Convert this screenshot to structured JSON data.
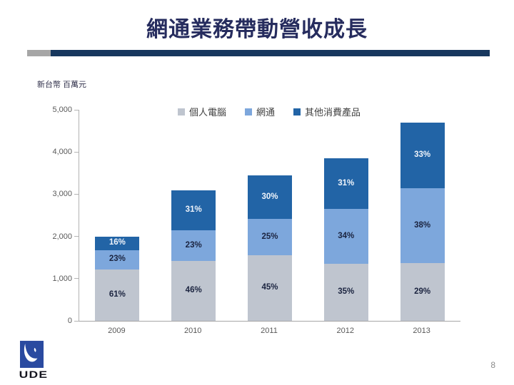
{
  "slide": {
    "title": "網通業務帶動營收成長",
    "unit_label": "新台幣 百萬元",
    "page_number": "8",
    "logo_text": "UDE"
  },
  "colors": {
    "title_navy": "#262c5e",
    "rule_navy": "#17375e",
    "rule_gray": "#a6a6a6",
    "axis_line": "#b3b3b3",
    "tick_text": "#595959",
    "legend_text": "#404040",
    "logo_blue": "#2a4aa0"
  },
  "chart_data": {
    "type": "bar",
    "subtype": "stacked",
    "title": "",
    "categories": [
      "2009",
      "2010",
      "2011",
      "2012",
      "2013"
    ],
    "totals": [
      2000,
      3100,
      3450,
      3850,
      4700
    ],
    "series": [
      {
        "key": "personal-computer",
        "name": "個人電腦",
        "color": "#bfc5cf",
        "label_color": "#1b2440",
        "pct": [
          61,
          46,
          45,
          35,
          29
        ],
        "values": [
          1220,
          1426,
          1553,
          1348,
          1363
        ]
      },
      {
        "key": "networking",
        "name": "網通",
        "color": "#7da7dc",
        "label_color": "#1b2440",
        "pct": [
          23,
          23,
          25,
          34,
          38
        ],
        "values": [
          460,
          713,
          863,
          1309,
          1786
        ]
      },
      {
        "key": "other-consumer-products",
        "name": "其他消費產品",
        "color": "#2264a6",
        "label_color": "#eef3fa",
        "pct": [
          16,
          31,
          30,
          31,
          33
        ],
        "values": [
          320,
          961,
          1035,
          1194,
          1551
        ]
      }
    ],
    "ylim": [
      0,
      5000
    ],
    "ytick_step": 1000,
    "ytick_labels": [
      "5,000",
      "4,000",
      "3,000",
      "2,000",
      "1,000",
      "0"
    ],
    "legend_position": "top",
    "grid": false,
    "data_labels": "percent-of-bar-total"
  }
}
